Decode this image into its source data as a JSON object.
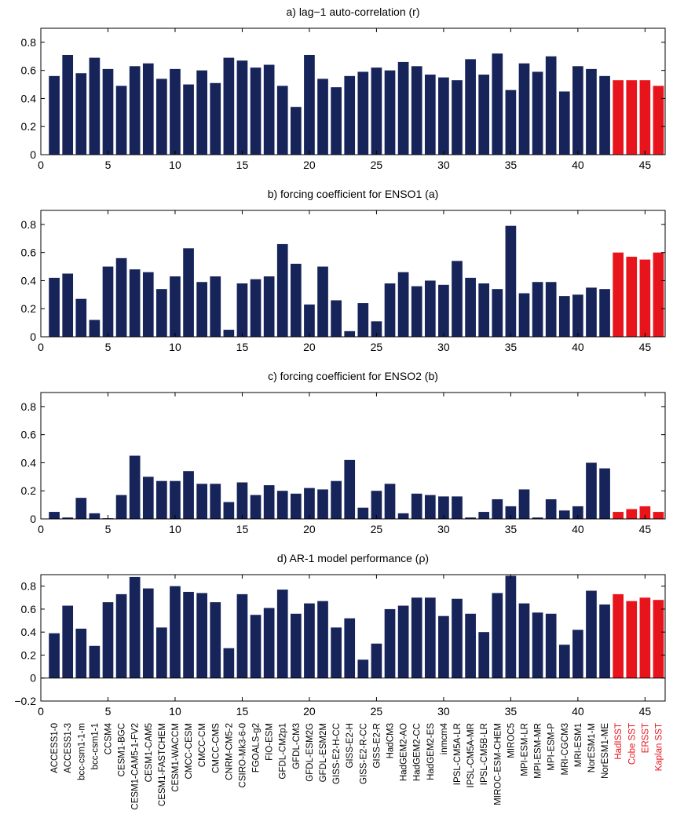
{
  "model_names": [
    "ACCESS1-0",
    "ACCESS1-3",
    "bcc-csm1-1-m",
    "bcc-csm1-1",
    "CCSM4",
    "CESM1-BGC",
    "CESM1-CAM5-1-FV2",
    "CESM1-CAM5",
    "CESM1-FASTCHEM",
    "CESM1-WACCM",
    "CMCC-CESM",
    "CMCC-CM",
    "CMCC-CMS",
    "CNRM-CM5-2",
    "CSIRO-Mk3-6-0",
    "FGOALS-g2",
    "FIO-ESM",
    "GFDL-CM2p1",
    "GFDL-CM3",
    "GFDL-ESM2G",
    "GFDL-ESM2M",
    "GISS-E2-H-CC",
    "GISS-E2-H",
    "GISS-E2-R-CC",
    "GISS-E2-R",
    "HadCM3",
    "HadGEM2-AO",
    "HadGEM2-CC",
    "HadGEM2-ES",
    "inmcm4",
    "IPSL-CM5A-LR",
    "IPSL-CM5A-MR",
    "IPSL-CM5B-LR",
    "MIROC-ESM-CHEM",
    "MIROC5",
    "MPI-ESM-LR",
    "MPI-ESM-MR",
    "MPI-ESM-P",
    "MRI-CGCM3",
    "MRI-ESM1",
    "NorESM1-M",
    "NorESM1-ME",
    "HadISST",
    "Cobe SST",
    "ERSST",
    "Kaplan SST"
  ],
  "colors": {
    "model": "#16245a",
    "observation": "#e8141c",
    "observation_label": "#e8141c",
    "axis": "#000000"
  },
  "chart_data": [
    {
      "type": "bar",
      "title": "a) lag−1 auto-correlation (r)",
      "x": [
        1,
        2,
        3,
        4,
        5,
        6,
        7,
        8,
        9,
        10,
        11,
        12,
        13,
        14,
        15,
        16,
        17,
        18,
        19,
        20,
        21,
        22,
        23,
        24,
        25,
        26,
        27,
        28,
        29,
        30,
        31,
        32,
        33,
        34,
        35,
        36,
        37,
        38,
        39,
        40,
        41,
        42,
        43,
        44,
        45,
        46
      ],
      "values": [
        0.56,
        0.71,
        0.58,
        0.69,
        0.61,
        0.49,
        0.63,
        0.65,
        0.54,
        0.61,
        0.5,
        0.6,
        0.51,
        0.69,
        0.67,
        0.62,
        0.64,
        0.49,
        0.34,
        0.71,
        0.54,
        0.48,
        0.56,
        0.59,
        0.62,
        0.6,
        0.66,
        0.63,
        0.57,
        0.55,
        0.53,
        0.68,
        0.57,
        0.72,
        0.46,
        0.65,
        0.59,
        0.7,
        0.45,
        0.63,
        0.61,
        0.56,
        0.53,
        0.53,
        0.53,
        0.49
      ],
      "xlim": [
        0,
        46.5
      ],
      "ylim": [
        0,
        0.9
      ],
      "xticks": [
        0,
        5,
        10,
        15,
        20,
        25,
        30,
        35,
        40,
        45
      ],
      "xtick_labels": [
        "0",
        "5",
        "10",
        "15",
        "20",
        "25",
        "30",
        "35",
        "40",
        "45"
      ],
      "yticks": [
        0,
        0.2,
        0.4,
        0.6,
        0.8
      ],
      "ytick_labels": [
        "0",
        "0.2",
        "0.4",
        "0.6",
        "0.8"
      ]
    },
    {
      "type": "bar",
      "title": "b) forcing coefficient for ENSO1 (a)",
      "x": [
        1,
        2,
        3,
        4,
        5,
        6,
        7,
        8,
        9,
        10,
        11,
        12,
        13,
        14,
        15,
        16,
        17,
        18,
        19,
        20,
        21,
        22,
        23,
        24,
        25,
        26,
        27,
        28,
        29,
        30,
        31,
        32,
        33,
        34,
        35,
        36,
        37,
        38,
        39,
        40,
        41,
        42,
        43,
        44,
        45,
        46
      ],
      "values": [
        0.42,
        0.45,
        0.27,
        0.12,
        0.5,
        0.56,
        0.48,
        0.46,
        0.34,
        0.43,
        0.63,
        0.39,
        0.43,
        0.05,
        0.38,
        0.41,
        0.43,
        0.66,
        0.52,
        0.23,
        0.5,
        0.26,
        0.04,
        0.24,
        0.11,
        0.38,
        0.46,
        0.36,
        0.4,
        0.37,
        0.54,
        0.42,
        0.38,
        0.34,
        0.79,
        0.31,
        0.39,
        0.39,
        0.29,
        0.3,
        0.35,
        0.34,
        0.6,
        0.57,
        0.55,
        0.6
      ],
      "xlim": [
        0,
        46.5
      ],
      "ylim": [
        0,
        0.9
      ],
      "xticks": [
        0,
        5,
        10,
        15,
        20,
        25,
        30,
        35,
        40,
        45
      ],
      "xtick_labels": [
        "0",
        "5",
        "10",
        "15",
        "20",
        "25",
        "30",
        "35",
        "40",
        "45"
      ],
      "yticks": [
        0,
        0.2,
        0.4,
        0.6,
        0.8
      ],
      "ytick_labels": [
        "0",
        "0.2",
        "0.4",
        "0.6",
        "0.8"
      ]
    },
    {
      "type": "bar",
      "title": "c) forcing coefficient for ENSO2 (b)",
      "x": [
        1,
        2,
        3,
        4,
        5,
        6,
        7,
        8,
        9,
        10,
        11,
        12,
        13,
        14,
        15,
        16,
        17,
        18,
        19,
        20,
        21,
        22,
        23,
        24,
        25,
        26,
        27,
        28,
        29,
        30,
        31,
        32,
        33,
        34,
        35,
        36,
        37,
        38,
        39,
        40,
        41,
        42,
        43,
        44,
        45,
        46
      ],
      "values": [
        0.05,
        0.01,
        0.15,
        0.04,
        0.005,
        0.17,
        0.45,
        0.3,
        0.27,
        0.27,
        0.34,
        0.25,
        0.25,
        0.12,
        0.26,
        0.17,
        0.24,
        0.2,
        0.18,
        0.22,
        0.21,
        0.27,
        0.42,
        0.08,
        0.2,
        0.25,
        0.04,
        0.18,
        0.17,
        0.16,
        0.16,
        0.01,
        0.05,
        0.14,
        0.09,
        0.21,
        0.01,
        0.14,
        0.06,
        0.09,
        0.4,
        0.36,
        0.05,
        0.07,
        0.09,
        0.05
      ],
      "xlim": [
        0,
        46.5
      ],
      "ylim": [
        0,
        0.9
      ],
      "xticks": [
        0,
        5,
        10,
        15,
        20,
        25,
        30,
        35,
        40,
        45
      ],
      "xtick_labels": [
        "0",
        "5",
        "10",
        "15",
        "20",
        "25",
        "30",
        "35",
        "40",
        "45"
      ],
      "yticks": [
        0,
        0.2,
        0.4,
        0.6,
        0.8
      ],
      "ytick_labels": [
        "0",
        "0.2",
        "0.4",
        "0.6",
        "0.8"
      ]
    },
    {
      "type": "bar",
      "title": "d) AR-1 model performance (ρ)",
      "x": [
        1,
        2,
        3,
        4,
        5,
        6,
        7,
        8,
        9,
        10,
        11,
        12,
        13,
        14,
        15,
        16,
        17,
        18,
        19,
        20,
        21,
        22,
        23,
        24,
        25,
        26,
        27,
        28,
        29,
        30,
        31,
        32,
        33,
        34,
        35,
        36,
        37,
        38,
        39,
        40,
        41,
        42,
        43,
        44,
        45,
        46
      ],
      "values": [
        0.39,
        0.63,
        0.43,
        0.28,
        0.66,
        0.73,
        0.88,
        0.78,
        0.44,
        0.8,
        0.75,
        0.74,
        0.66,
        0.26,
        0.73,
        0.55,
        0.61,
        0.77,
        0.56,
        0.65,
        0.67,
        0.44,
        0.52,
        0.16,
        0.3,
        0.6,
        0.63,
        0.7,
        0.7,
        0.54,
        0.69,
        0.56,
        0.4,
        0.74,
        0.89,
        0.65,
        0.57,
        0.56,
        0.29,
        0.42,
        0.76,
        0.64,
        0.73,
        0.67,
        0.7,
        0.68
      ],
      "xlim": [
        0,
        46.5
      ],
      "ylim": [
        -0.2,
        0.9
      ],
      "xticks": [
        0,
        5,
        10,
        15,
        20,
        25,
        30,
        35,
        40,
        45
      ],
      "xtick_labels": [
        "0",
        "5",
        "10",
        "15",
        "20",
        "25",
        "30",
        "35",
        "40",
        "45"
      ],
      "yticks": [
        -0.2,
        0,
        0.2,
        0.4,
        0.6,
        0.8
      ],
      "ytick_labels": [
        "−0.2",
        "0",
        "0.2",
        "0.4",
        "0.6",
        "0.8"
      ]
    }
  ]
}
